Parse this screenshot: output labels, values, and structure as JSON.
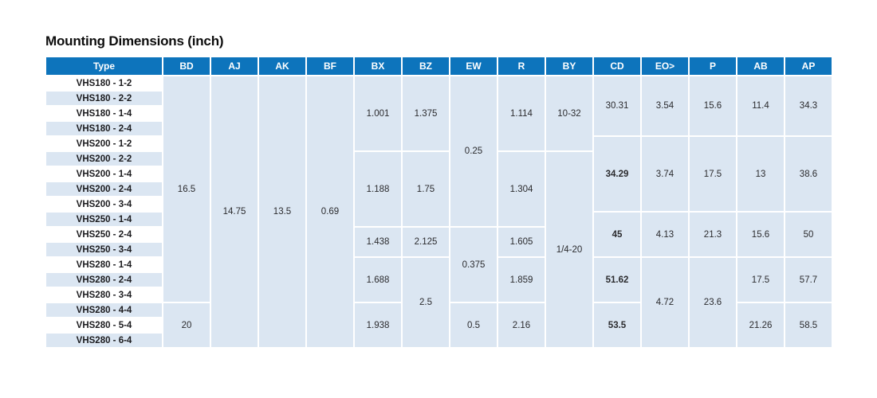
{
  "title": "Mounting Dimensions (inch)",
  "colors": {
    "header_bg": "#0d74bc",
    "header_text": "#ffffff",
    "cell_bg": "#dbe6f2",
    "stripe_bg": "#dbe6f2",
    "body_text": "#2b2b2e"
  },
  "table": {
    "headers": [
      "Type",
      "BD",
      "AJ",
      "AK",
      "BF",
      "BX",
      "BZ",
      "EW",
      "R",
      "BY",
      "CD",
      "EO>",
      "P",
      "AB",
      "AP"
    ],
    "row_types": [
      "VHS180 - 1-2",
      "VHS180 - 2-2",
      "VHS180 - 1-4",
      "VHS180 - 2-4",
      "VHS200 - 1-2",
      "VHS200 - 2-2",
      "VHS200 - 1-4",
      "VHS200 - 2-4",
      "VHS200 - 3-4",
      "VHS250 - 1-4",
      "VHS250 - 2-4",
      "VHS250 - 3-4",
      "VHS280 - 1-4",
      "VHS280 - 2-4",
      "VHS280 - 3-4",
      "VHS280 - 4-4",
      "VHS280 - 5-4",
      "VHS280 - 6-4"
    ],
    "columns": [
      {
        "key": "BD",
        "cells": [
          {
            "span": [
              1,
              15
            ],
            "value": "16.5"
          },
          {
            "span": [
              16,
              18
            ],
            "value": "20"
          }
        ]
      },
      {
        "key": "AJ",
        "cells": [
          {
            "span": [
              1,
              18
            ],
            "value": "14.75"
          }
        ]
      },
      {
        "key": "AK",
        "cells": [
          {
            "span": [
              1,
              18
            ],
            "value": "13.5"
          }
        ]
      },
      {
        "key": "BF",
        "cells": [
          {
            "span": [
              1,
              18
            ],
            "value": "0.69"
          }
        ]
      },
      {
        "key": "BX",
        "cells": [
          {
            "span": [
              1,
              5
            ],
            "value": "1.001"
          },
          {
            "span": [
              6,
              10
            ],
            "value": "1.188"
          },
          {
            "span": [
              11,
              12
            ],
            "value": "1.438"
          },
          {
            "span": [
              13,
              15
            ],
            "value": "1.688"
          },
          {
            "span": [
              16,
              18
            ],
            "value": "1.938"
          }
        ]
      },
      {
        "key": "BZ",
        "cells": [
          {
            "span": [
              1,
              5
            ],
            "value": "1.375"
          },
          {
            "span": [
              6,
              10
            ],
            "value": "1.75"
          },
          {
            "span": [
              11,
              12
            ],
            "value": "2.125"
          },
          {
            "span": [
              13,
              18
            ],
            "value": "2.5"
          }
        ]
      },
      {
        "key": "EW",
        "cells": [
          {
            "span": [
              1,
              10
            ],
            "value": "0.25"
          },
          {
            "span": [
              11,
              15
            ],
            "value": "0.375"
          },
          {
            "span": [
              16,
              18
            ],
            "value": "0.5"
          }
        ]
      },
      {
        "key": "R",
        "cells": [
          {
            "span": [
              1,
              5
            ],
            "value": "1.114"
          },
          {
            "span": [
              6,
              10
            ],
            "value": "1.304"
          },
          {
            "span": [
              11,
              12
            ],
            "value": "1.605"
          },
          {
            "span": [
              13,
              15
            ],
            "value": "1.859"
          },
          {
            "span": [
              16,
              18
            ],
            "value": "2.16"
          }
        ]
      },
      {
        "key": "BY",
        "cells": [
          {
            "span": [
              1,
              5
            ],
            "value": "10-32"
          },
          {
            "span": [
              6,
              18
            ],
            "value": "1/4-20"
          }
        ]
      },
      {
        "key": "CD",
        "cells": [
          {
            "span": [
              1,
              4
            ],
            "value": "30.31"
          },
          {
            "span": [
              5,
              9
            ],
            "value": "34.29",
            "bold": true
          },
          {
            "span": [
              10,
              12
            ],
            "value": "45",
            "bold": true
          },
          {
            "span": [
              13,
              15
            ],
            "value": "51.62",
            "bold": true
          },
          {
            "span": [
              16,
              18
            ],
            "value": "53.5",
            "bold": true
          }
        ]
      },
      {
        "key": "EO>",
        "cells": [
          {
            "span": [
              1,
              4
            ],
            "value": "3.54"
          },
          {
            "span": [
              5,
              9
            ],
            "value": "3.74"
          },
          {
            "span": [
              10,
              12
            ],
            "value": "4.13"
          },
          {
            "span": [
              13,
              18
            ],
            "value": "4.72"
          }
        ]
      },
      {
        "key": "P",
        "cells": [
          {
            "span": [
              1,
              4
            ],
            "value": "15.6"
          },
          {
            "span": [
              5,
              9
            ],
            "value": "17.5"
          },
          {
            "span": [
              10,
              12
            ],
            "value": "21.3"
          },
          {
            "span": [
              13,
              18
            ],
            "value": "23.6"
          }
        ]
      },
      {
        "key": "AB",
        "cells": [
          {
            "span": [
              1,
              4
            ],
            "value": "11.4"
          },
          {
            "span": [
              5,
              9
            ],
            "value": "13"
          },
          {
            "span": [
              10,
              12
            ],
            "value": "15.6"
          },
          {
            "span": [
              13,
              15
            ],
            "value": "17.5"
          },
          {
            "span": [
              16,
              18
            ],
            "value": "21.26"
          }
        ]
      },
      {
        "key": "AP",
        "cells": [
          {
            "span": [
              1,
              4
            ],
            "value": "34.3"
          },
          {
            "span": [
              5,
              9
            ],
            "value": "38.6"
          },
          {
            "span": [
              10,
              12
            ],
            "value": "50"
          },
          {
            "span": [
              13,
              15
            ],
            "value": "57.7"
          },
          {
            "span": [
              16,
              18
            ],
            "value": "58.5"
          }
        ]
      }
    ]
  }
}
